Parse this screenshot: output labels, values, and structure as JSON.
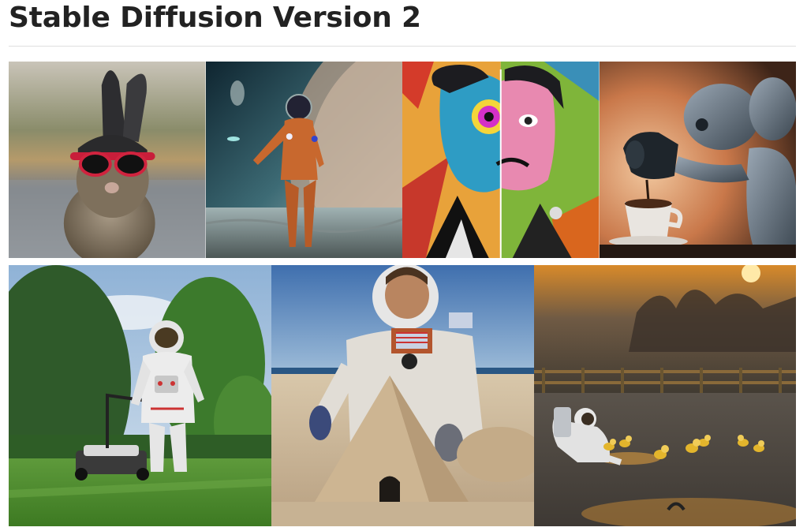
{
  "page": {
    "title": "Stable Diffusion Version 2"
  },
  "gallery": {
    "row1": [
      {
        "subject": "rabbit-with-sunglasses"
      },
      {
        "subject": "astronaut-woman-on-moon"
      },
      {
        "subject": "surreal-split-face-painting"
      },
      {
        "subject": "robot-pouring-coffee"
      }
    ],
    "row2": [
      {
        "subject": "astronaut-mowing-lawn"
      },
      {
        "subject": "astronaut-sand-pyramid"
      },
      {
        "subject": "astronaut-with-ducklings"
      }
    ]
  },
  "colors": {
    "title_text": "#222222",
    "divider": "#e0e0e0"
  }
}
